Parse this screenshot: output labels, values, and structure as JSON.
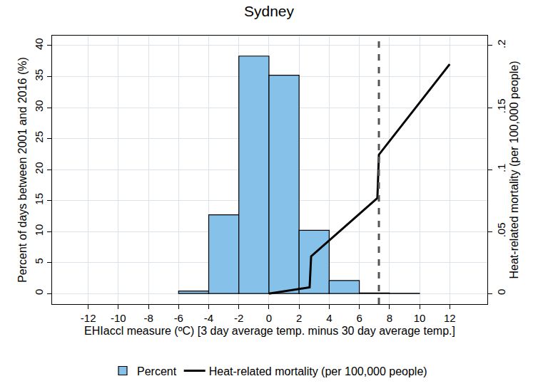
{
  "chart_data": {
    "type": "histogram",
    "title": "Sydney",
    "x_label": "EHIaccl measure (ºC) [3 day average temp. minus 30 day average temp.]",
    "y_label": "Percent of days between 2001 and 2016 (%)",
    "y2_label": "Heat-related mortality (per 100,000 people)",
    "xlim": [
      -14.4,
      14.5
    ],
    "xticks": [
      -12,
      -10,
      -8,
      -6,
      -4,
      -2,
      0,
      2,
      4,
      6,
      8,
      10,
      12
    ],
    "ylim": [
      -1.7,
      41.6
    ],
    "yticks": [
      0,
      5,
      10,
      15,
      20,
      25,
      30,
      35,
      40
    ],
    "y2lim": [
      -0.0085,
      0.208
    ],
    "y2ticks": [
      0,
      {
        "value": 0.05,
        "label": ".05"
      },
      {
        "value": 0.1,
        "label": ".1"
      },
      {
        "value": 0.15,
        "label": ".15"
      },
      {
        "value": 0.2,
        "label": ".2"
      }
    ],
    "grid": true,
    "legend": "bottom",
    "series": [
      {
        "name": "Percent",
        "type": "histogram",
        "color": "#85c1e9",
        "bins": [
          -6,
          -4,
          -2,
          0,
          2,
          4,
          6,
          8,
          10
        ],
        "values": [
          0.4,
          12.7,
          38.3,
          35.2,
          10.2,
          2.1,
          0.1,
          0.05
        ]
      },
      {
        "name": "Heat-related mortality (per 100,000 people)",
        "type": "line",
        "color": "#000000",
        "axis": "y2",
        "x": [
          0,
          2.7,
          2.8,
          7.2,
          7.3,
          12
        ],
        "values": [
          0,
          0.005,
          0.03,
          0.077,
          0.112,
          0.185
        ]
      }
    ],
    "reference_line": {
      "x": 7.3,
      "color": "#555555",
      "line_style": "dash"
    }
  }
}
